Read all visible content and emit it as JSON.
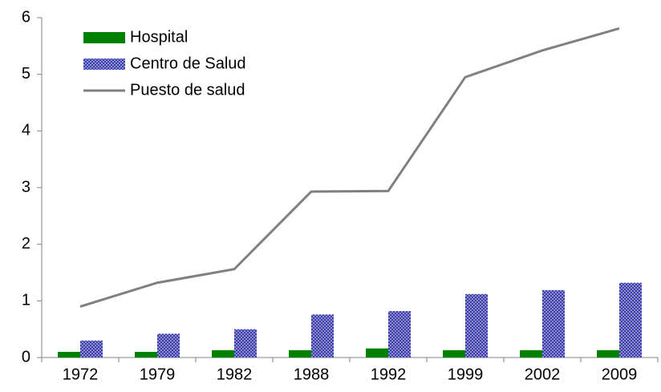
{
  "chart_data": {
    "type": "bar",
    "categories": [
      "1972",
      "1979",
      "1982",
      "1988",
      "1992",
      "1999",
      "2002",
      "2009"
    ],
    "series": [
      {
        "name": "Hospital",
        "type": "bar",
        "color": "#008000",
        "values": [
          0.1,
          0.1,
          0.13,
          0.13,
          0.16,
          0.13,
          0.13,
          0.13
        ]
      },
      {
        "name": "Centro de Salud",
        "type": "bar",
        "color": "#3c3ca8",
        "values": [
          0.3,
          0.42,
          0.5,
          0.76,
          0.82,
          1.12,
          1.19,
          1.32
        ]
      },
      {
        "name": "Puesto de salud",
        "type": "line",
        "color": "#808080",
        "values": [
          0.9,
          1.32,
          1.56,
          2.93,
          2.94,
          4.95,
          5.42,
          5.81
        ]
      }
    ],
    "ylim": [
      0,
      6
    ],
    "yticks": [
      0,
      1,
      2,
      3,
      4,
      5,
      6
    ],
    "legend": "top-left"
  }
}
